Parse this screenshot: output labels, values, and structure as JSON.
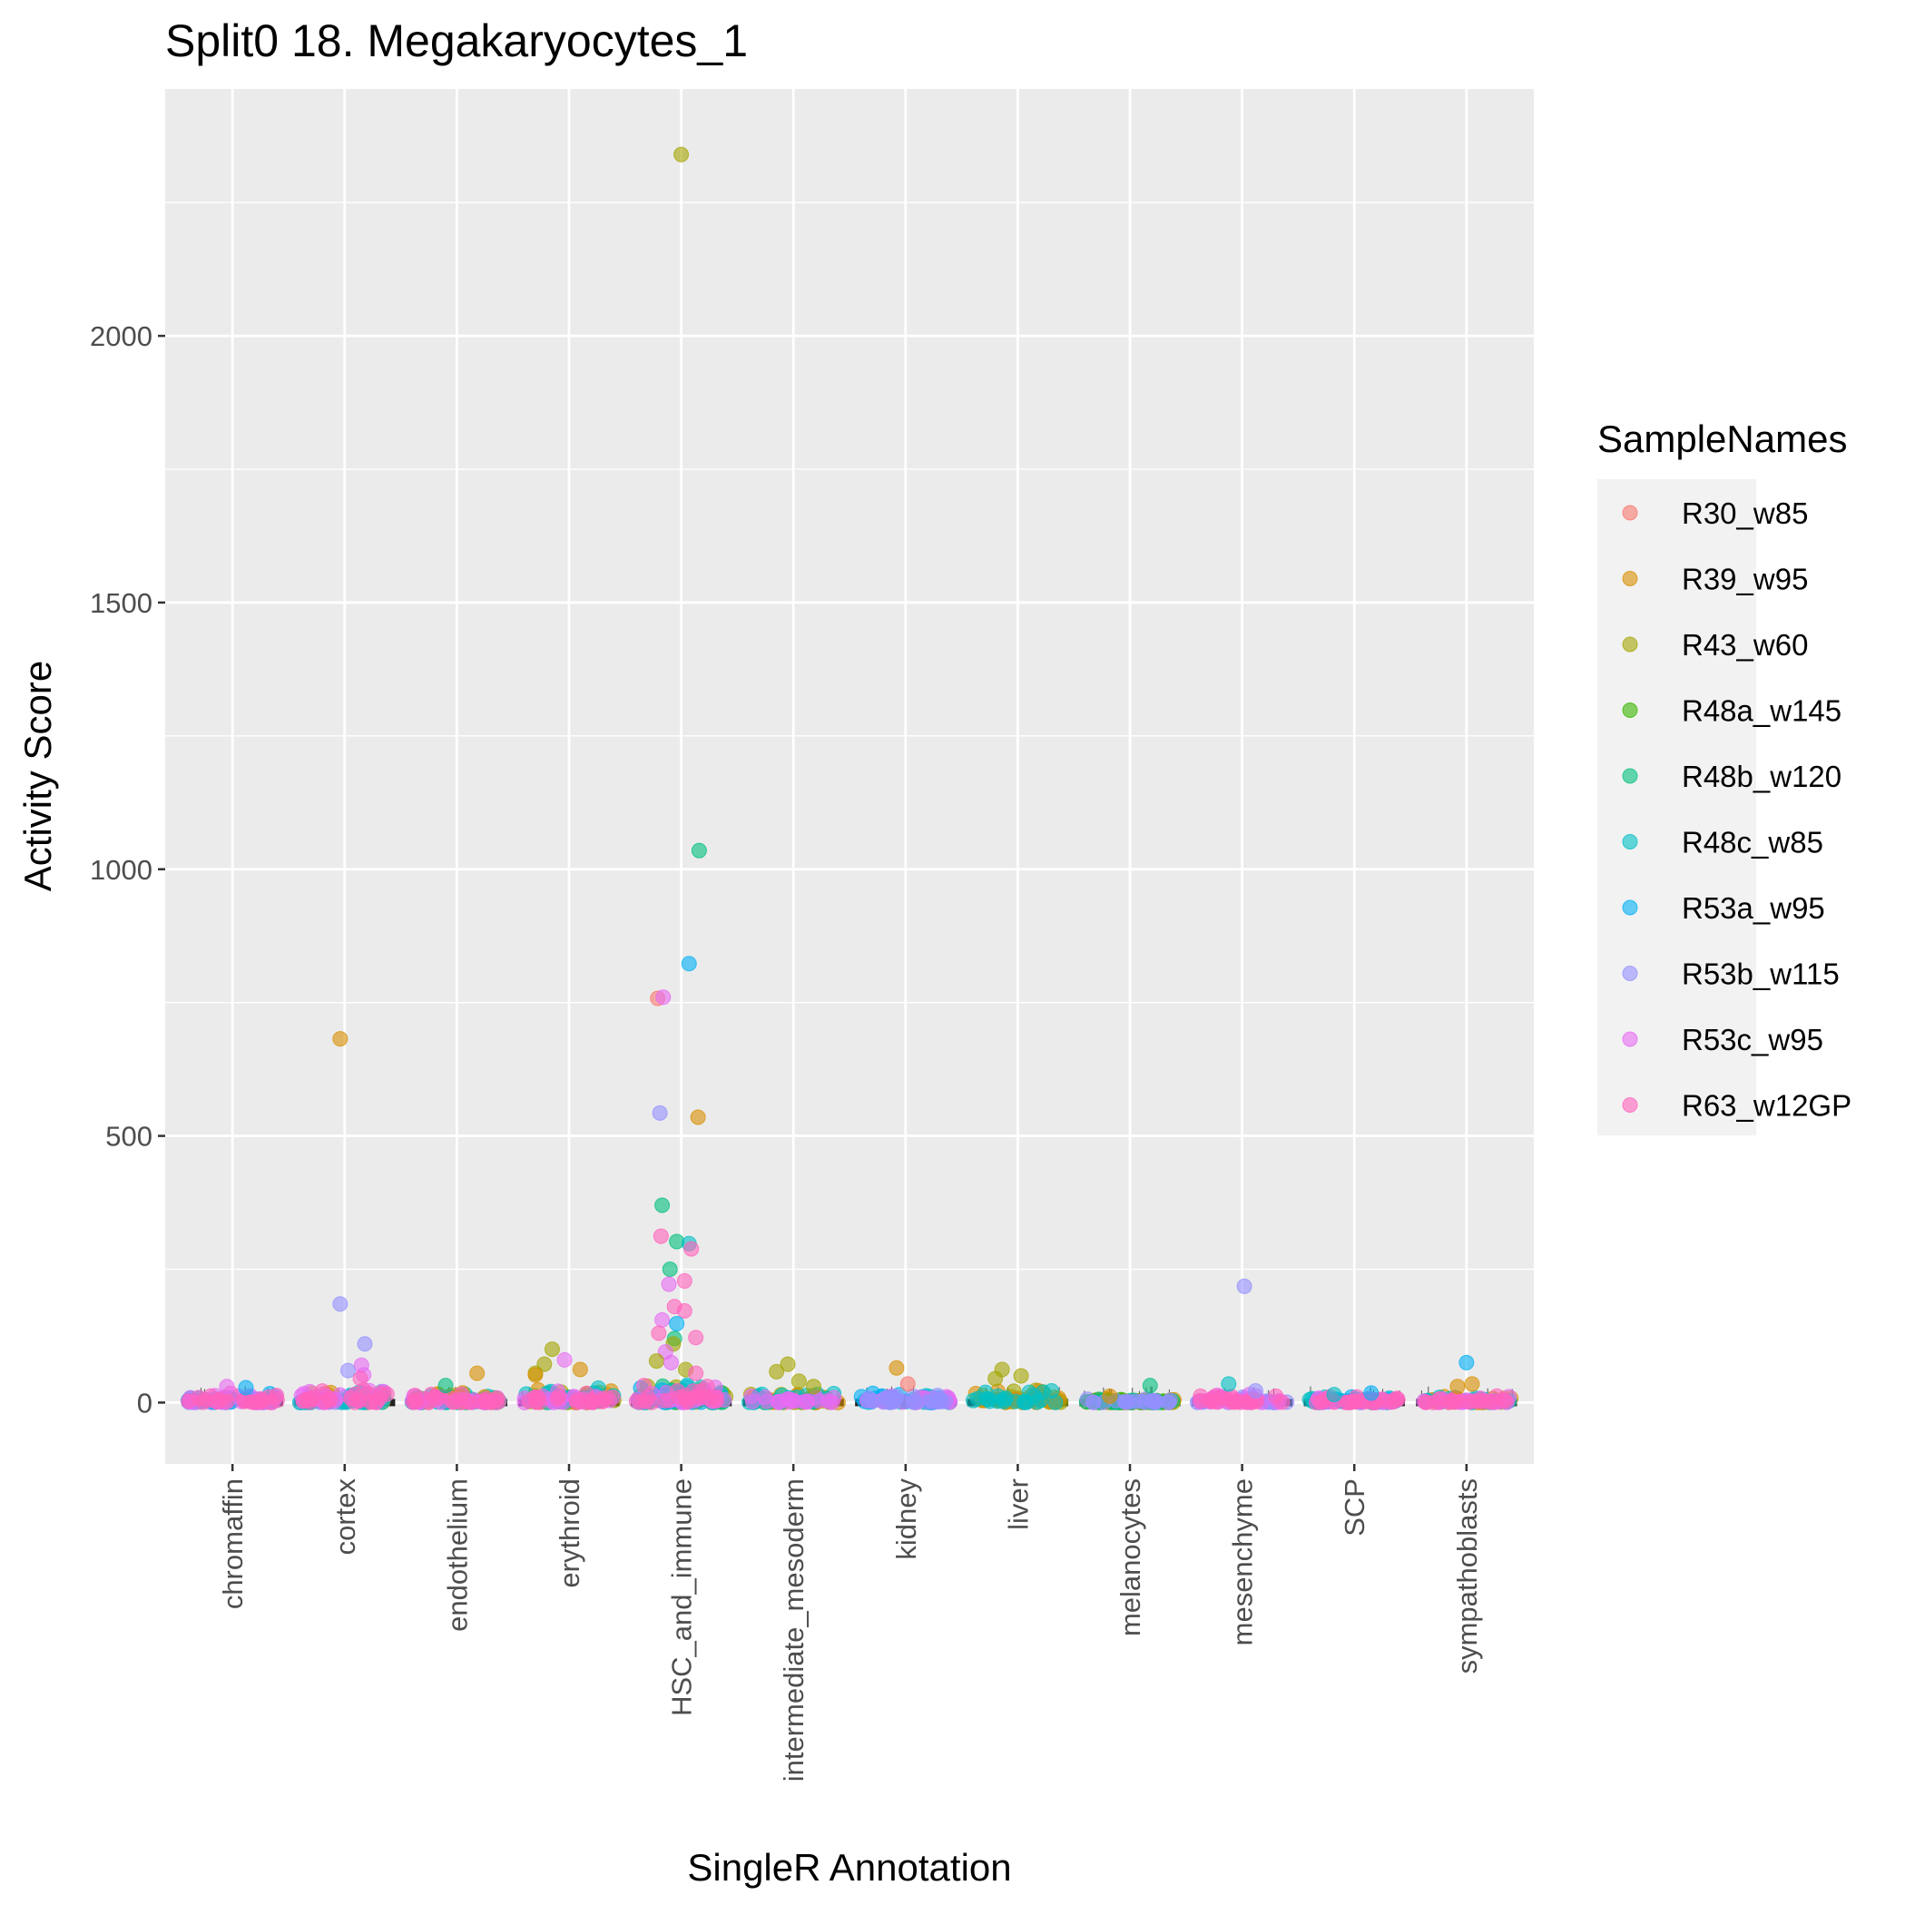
{
  "chart_data": {
    "type": "scatter",
    "title": "Split0 18. Megakaryocytes_1",
    "xlabel": "SingleR Annotation",
    "ylabel": "Activity Score",
    "ylim": [
      -115,
      2463
    ],
    "yticks": [
      0,
      500,
      1000,
      1500,
      2000
    ],
    "grid": true,
    "legend_position": "right",
    "legend_title": "SampleNames",
    "categories": [
      "chromaffin",
      "cortex",
      "endothelium",
      "erythroid",
      "HSC_and_immune",
      "intermediate_mesoderm",
      "kidney",
      "liver",
      "melanocytes",
      "mesenchyme",
      "SCP",
      "sympathoblasts"
    ],
    "series": [
      {
        "name": "R30_w85",
        "color": "#F8766D"
      },
      {
        "name": "R39_w95",
        "color": "#D89000"
      },
      {
        "name": "R43_w60",
        "color": "#A3A500"
      },
      {
        "name": "R48a_w145",
        "color": "#39B600"
      },
      {
        "name": "R48b_w120",
        "color": "#00BF7D"
      },
      {
        "name": "R48c_w85",
        "color": "#00BFC4"
      },
      {
        "name": "R53a_w95",
        "color": "#00B0F6"
      },
      {
        "name": "R53b_w115",
        "color": "#9590FF"
      },
      {
        "name": "R53c_w95",
        "color": "#E76BF3"
      },
      {
        "name": "R63_w12GP",
        "color": "#FF62BC"
      }
    ],
    "outliers": [
      {
        "category": "HSC_and_immune",
        "sample": "R43_w60",
        "value": 2340,
        "offset": 0.0
      },
      {
        "category": "HSC_and_immune",
        "sample": "R48b_w120",
        "value": 1035,
        "offset": 0.16
      },
      {
        "category": "HSC_and_immune",
        "sample": "R53a_w95",
        "value": 823,
        "offset": 0.07
      },
      {
        "category": "HSC_and_immune",
        "sample": "R30_w85",
        "value": 758,
        "offset": -0.21
      },
      {
        "category": "HSC_and_immune",
        "sample": "R53c_w95",
        "value": 760,
        "offset": -0.16
      },
      {
        "category": "HSC_and_immune",
        "sample": "R53b_w115",
        "value": 543,
        "offset": -0.19
      },
      {
        "category": "HSC_and_immune",
        "sample": "R39_w95",
        "value": 535,
        "offset": 0.15
      },
      {
        "category": "HSC_and_immune",
        "sample": "R48b_w120",
        "value": 370,
        "offset": -0.17
      },
      {
        "category": "HSC_and_immune",
        "sample": "R63_w12GP",
        "value": 312,
        "offset": -0.18
      },
      {
        "category": "HSC_and_immune",
        "sample": "R48b_w120",
        "value": 302,
        "offset": -0.04
      },
      {
        "category": "HSC_and_immune",
        "sample": "R48c_w85",
        "value": 298,
        "offset": 0.07
      },
      {
        "category": "HSC_and_immune",
        "sample": "R63_w12GP",
        "value": 288,
        "offset": 0.09
      },
      {
        "category": "HSC_and_immune",
        "sample": "R48b_w120",
        "value": 250,
        "offset": -0.1
      },
      {
        "category": "HSC_and_immune",
        "sample": "R63_w12GP",
        "value": 228,
        "offset": 0.03
      },
      {
        "category": "HSC_and_immune",
        "sample": "R53c_w95",
        "value": 222,
        "offset": -0.11
      },
      {
        "category": "HSC_and_immune",
        "sample": "R63_w12GP",
        "value": 180,
        "offset": -0.06
      },
      {
        "category": "HSC_and_immune",
        "sample": "R63_w12GP",
        "value": 172,
        "offset": 0.03
      },
      {
        "category": "HSC_and_immune",
        "sample": "R53c_w95",
        "value": 155,
        "offset": -0.17
      },
      {
        "category": "HSC_and_immune",
        "sample": "R53a_w95",
        "value": 148,
        "offset": -0.04
      },
      {
        "category": "HSC_and_immune",
        "sample": "R63_w12GP",
        "value": 130,
        "offset": -0.2
      },
      {
        "category": "HSC_and_immune",
        "sample": "R63_w12GP",
        "value": 122,
        "offset": 0.13
      },
      {
        "category": "HSC_and_immune",
        "sample": "R48b_w120",
        "value": 120,
        "offset": -0.06
      },
      {
        "category": "HSC_and_immune",
        "sample": "R43_w60",
        "value": 110,
        "offset": -0.07
      },
      {
        "category": "HSC_and_immune",
        "sample": "R53c_w95",
        "value": 95,
        "offset": -0.14
      },
      {
        "category": "HSC_and_immune",
        "sample": "R43_w60",
        "value": 78,
        "offset": -0.22
      },
      {
        "category": "HSC_and_immune",
        "sample": "R53c_w95",
        "value": 75,
        "offset": -0.09
      },
      {
        "category": "HSC_and_immune",
        "sample": "R43_w60",
        "value": 62,
        "offset": 0.04
      },
      {
        "category": "HSC_and_immune",
        "sample": "R63_w12GP",
        "value": 55,
        "offset": 0.13
      },
      {
        "category": "cortex",
        "sample": "R39_w95",
        "value": 682,
        "offset": -0.04
      },
      {
        "category": "cortex",
        "sample": "R53b_w115",
        "value": 185,
        "offset": -0.04
      },
      {
        "category": "cortex",
        "sample": "R53b_w115",
        "value": 110,
        "offset": 0.18
      },
      {
        "category": "cortex",
        "sample": "R53c_w95",
        "value": 70,
        "offset": 0.15
      },
      {
        "category": "cortex",
        "sample": "R53b_w115",
        "value": 60,
        "offset": 0.03
      },
      {
        "category": "cortex",
        "sample": "R53c_w95",
        "value": 52,
        "offset": 0.17
      },
      {
        "category": "cortex",
        "sample": "R63_w12GP",
        "value": 45,
        "offset": 0.14
      },
      {
        "category": "mesenchyme",
        "sample": "R53b_w115",
        "value": 218,
        "offset": 0.02
      },
      {
        "category": "erythroid",
        "sample": "R43_w60",
        "value": 100,
        "offset": -0.15
      },
      {
        "category": "erythroid",
        "sample": "R53c_w95",
        "value": 80,
        "offset": -0.04
      },
      {
        "category": "erythroid",
        "sample": "R43_w60",
        "value": 72,
        "offset": -0.22
      },
      {
        "category": "erythroid",
        "sample": "R39_w95",
        "value": 62,
        "offset": 0.1
      },
      {
        "category": "erythroid",
        "sample": "R43_w60",
        "value": 55,
        "offset": -0.3
      },
      {
        "category": "erythroid",
        "sample": "R39_w95",
        "value": 52,
        "offset": -0.3
      },
      {
        "category": "intermediate_mesoderm",
        "sample": "R43_w60",
        "value": 72,
        "offset": -0.05
      },
      {
        "category": "intermediate_mesoderm",
        "sample": "R43_w60",
        "value": 58,
        "offset": -0.15
      },
      {
        "category": "intermediate_mesoderm",
        "sample": "R43_w60",
        "value": 40,
        "offset": 0.05
      },
      {
        "category": "intermediate_mesoderm",
        "sample": "R43_w60",
        "value": 30,
        "offset": 0.18
      },
      {
        "category": "kidney",
        "sample": "R39_w95",
        "value": 65,
        "offset": -0.08
      },
      {
        "category": "kidney",
        "sample": "R30_w85",
        "value": 35,
        "offset": 0.02
      },
      {
        "category": "liver",
        "sample": "R43_w60",
        "value": 62,
        "offset": -0.14
      },
      {
        "category": "liver",
        "sample": "R43_w60",
        "value": 50,
        "offset": 0.03
      },
      {
        "category": "liver",
        "sample": "R43_w60",
        "value": 45,
        "offset": -0.2
      },
      {
        "category": "sympathoblasts",
        "sample": "R53a_w95",
        "value": 75,
        "offset": 0.0
      },
      {
        "category": "sympathoblasts",
        "sample": "R39_w95",
        "value": 35,
        "offset": 0.05
      },
      {
        "category": "sympathoblasts",
        "sample": "R39_w95",
        "value": 30,
        "offset": -0.08
      },
      {
        "category": "endothelium",
        "sample": "R39_w95",
        "value": 55,
        "offset": 0.18
      },
      {
        "category": "endothelium",
        "sample": "R48b_w120",
        "value": 32,
        "offset": -0.1
      },
      {
        "category": "melanocytes",
        "sample": "R48b_w120",
        "value": 32,
        "offset": 0.18
      },
      {
        "category": "melanocytes",
        "sample": "R39_w95",
        "value": 12,
        "offset": -0.18
      },
      {
        "category": "mesenchyme",
        "sample": "R48c_w85",
        "value": 35,
        "offset": -0.12
      },
      {
        "category": "mesenchyme",
        "sample": "R53b_w115",
        "value": 22,
        "offset": 0.12
      },
      {
        "category": "chromaffin",
        "sample": "R53a_w95",
        "value": 28,
        "offset": 0.12
      },
      {
        "category": "chromaffin",
        "sample": "R53c_w95",
        "value": 30,
        "offset": -0.05
      },
      {
        "category": "SCP",
        "sample": "R53a_w95",
        "value": 18,
        "offset": 0.15
      },
      {
        "category": "SCP",
        "sample": "R48c_w85",
        "value": 15,
        "offset": -0.18
      }
    ],
    "clusters": [
      {
        "category": "chromaffin",
        "samples": [
          "R53b_w115",
          "R53a_w95",
          "R53c_w95",
          "R63_w12GP"
        ],
        "max": 18
      },
      {
        "category": "cortex",
        "samples": [
          "R39_w95",
          "R53b_w115",
          "R48c_w85",
          "R53c_w95",
          "R63_w12GP"
        ],
        "max": 28
      },
      {
        "category": "endothelium",
        "samples": [
          "R48b_w120",
          "R48c_w85",
          "R39_w95",
          "R53c_w95",
          "R63_w12GP"
        ],
        "max": 22
      },
      {
        "category": "erythroid",
        "samples": [
          "R39_w95",
          "R43_w60",
          "R48c_w85",
          "R53c_w95",
          "R63_w12GP"
        ],
        "max": 30
      },
      {
        "category": "HSC_and_immune",
        "samples": [
          "R43_w60",
          "R48b_w120",
          "R53a_w95",
          "R48c_w85",
          "R53c_w95",
          "R63_w12GP"
        ],
        "max": 38
      },
      {
        "category": "intermediate_mesoderm",
        "samples": [
          "R43_w60",
          "R39_w95",
          "R48c_w85",
          "R53c_w95"
        ],
        "max": 20
      },
      {
        "category": "kidney",
        "samples": [
          "R48c_w85",
          "R53a_w95",
          "R53c_w95",
          "R53b_w115"
        ],
        "max": 18
      },
      {
        "category": "liver",
        "samples": [
          "R43_w60",
          "R39_w95",
          "R48c_w85"
        ],
        "max": 25
      },
      {
        "category": "melanocytes",
        "samples": [
          "R39_w95",
          "R43_w60",
          "R48a_w145",
          "R48b_w120",
          "R53b_w115"
        ],
        "max": 8
      },
      {
        "category": "mesenchyme",
        "samples": [
          "R53b_w115",
          "R53c_w95",
          "R63_w12GP"
        ],
        "max": 18
      },
      {
        "category": "SCP",
        "samples": [
          "R48c_w85",
          "R53a_w95",
          "R53c_w95",
          "R63_w12GP"
        ],
        "max": 12
      },
      {
        "category": "sympathoblasts",
        "samples": [
          "R39_w95",
          "R48c_w85",
          "R53c_w95",
          "R63_w12GP"
        ],
        "max": 14
      }
    ]
  }
}
